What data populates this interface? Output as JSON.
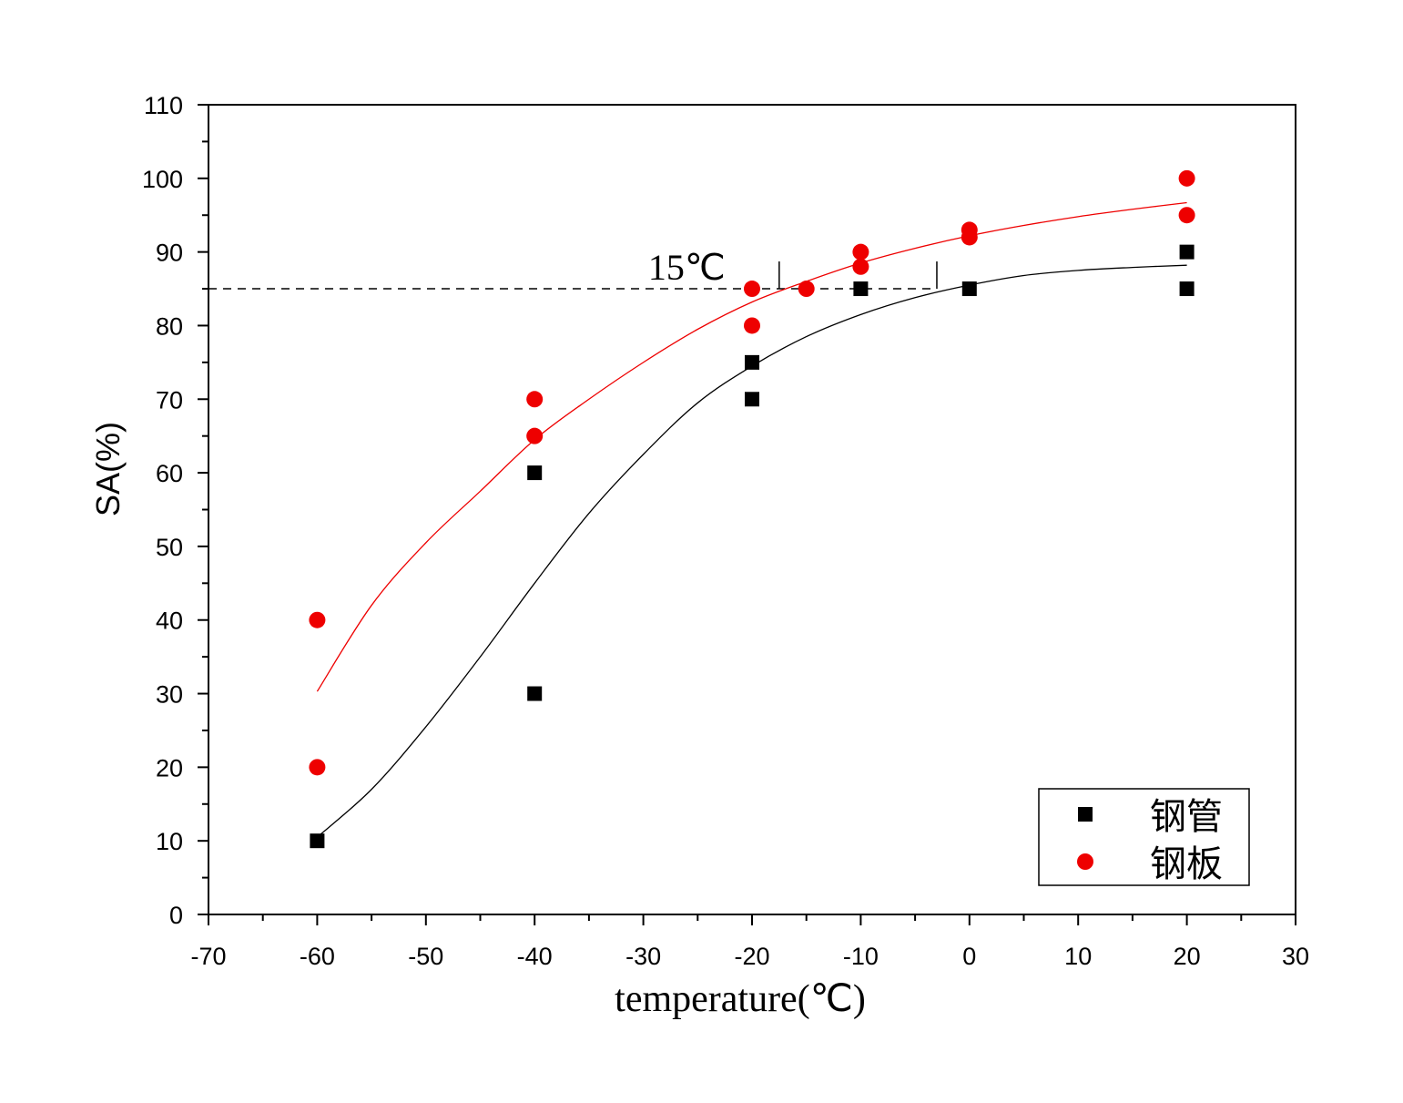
{
  "chart_data": {
    "type": "scatter",
    "xlabel": "temperature(℃)",
    "ylabel": "SA(%)",
    "xlim": [
      -70,
      30
    ],
    "ylim": [
      0,
      110
    ],
    "x_ticks": [
      "-70",
      "-60",
      "-50",
      "-40",
      "-30",
      "-20",
      "-10",
      "0",
      "10",
      "20",
      "30"
    ],
    "y_ticks": [
      "0",
      "10",
      "20",
      "30",
      "40",
      "50",
      "60",
      "70",
      "80",
      "90",
      "100",
      "110"
    ],
    "grid": false,
    "legend_position": "bottom-right",
    "series": [
      {
        "name": "钢管",
        "marker": "square",
        "color": "#000000",
        "points": [
          [
            -60,
            10
          ],
          [
            -40,
            30
          ],
          [
            -40,
            60
          ],
          [
            -20,
            70
          ],
          [
            -20,
            75
          ],
          [
            -10,
            85
          ],
          [
            0,
            85
          ],
          [
            20,
            85
          ],
          [
            20,
            90
          ]
        ],
        "fit_curve": [
          [
            -60,
            10.5
          ],
          [
            -55,
            17
          ],
          [
            -50,
            25.5
          ],
          [
            -45,
            35
          ],
          [
            -40,
            45
          ],
          [
            -35,
            54.5
          ],
          [
            -30,
            62.5
          ],
          [
            -25,
            69.5
          ],
          [
            -20,
            74.5
          ],
          [
            -15,
            78.5
          ],
          [
            -10,
            81.5
          ],
          [
            -5,
            83.8
          ],
          [
            0,
            85.5
          ],
          [
            5,
            86.8
          ],
          [
            10,
            87.5
          ],
          [
            15,
            87.9
          ],
          [
            20,
            88.2
          ]
        ]
      },
      {
        "name": "钢板",
        "marker": "circle",
        "color": "#ee0000",
        "points": [
          [
            -60,
            20
          ],
          [
            -60,
            40
          ],
          [
            -40,
            65
          ],
          [
            -40,
            70
          ],
          [
            -20,
            80
          ],
          [
            -20,
            85
          ],
          [
            -15,
            85
          ],
          [
            -10,
            88
          ],
          [
            -10,
            90
          ],
          [
            0,
            92
          ],
          [
            0,
            93
          ],
          [
            20,
            95
          ],
          [
            20,
            100
          ]
        ],
        "fit_curve": [
          [
            -60,
            30.3
          ],
          [
            -55,
            42
          ],
          [
            -50,
            50.5
          ],
          [
            -45,
            57.5
          ],
          [
            -40,
            64.5
          ],
          [
            -35,
            70
          ],
          [
            -30,
            75
          ],
          [
            -25,
            79.5
          ],
          [
            -20,
            83.2
          ],
          [
            -15,
            86
          ],
          [
            -10,
            88.5
          ],
          [
            -5,
            90.5
          ],
          [
            0,
            92.2
          ],
          [
            5,
            93.6
          ],
          [
            10,
            94.8
          ],
          [
            15,
            95.8
          ],
          [
            20,
            96.7
          ]
        ]
      }
    ],
    "reference_line": {
      "y": 85,
      "x_range": [
        -70,
        -3
      ],
      "style": "dashed"
    },
    "markers": [
      -17.5,
      -3
    ],
    "annotation": {
      "text": "15℃",
      "x": -26,
      "y": 88
    }
  }
}
